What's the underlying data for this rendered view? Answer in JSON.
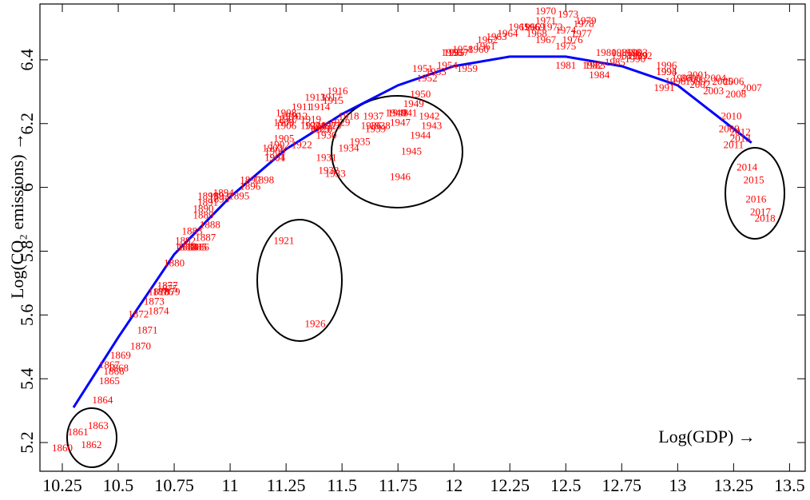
{
  "chart_data": {
    "type": "scatter",
    "xlabel": "Log(GDP) →",
    "ylabel": "Log(CO₂ emissions) →",
    "xlim": [
      10.15,
      13.57
    ],
    "ylim": [
      5.11,
      6.575
    ],
    "xticks": [
      10.25,
      10.5,
      10.75,
      11,
      11.25,
      11.5,
      11.75,
      12,
      12.25,
      12.5,
      12.75,
      13,
      13.25,
      13.5
    ],
    "yticks": [
      5.2,
      5.4,
      5.6,
      5.8,
      6,
      6.2,
      6.4
    ],
    "color": "#ff0000",
    "point_labels": [
      "1860",
      "1861",
      "1862",
      "1863",
      "1864",
      "1865",
      "1866",
      "1867",
      "1868",
      "1869",
      "1870",
      "1871",
      "1872",
      "1873",
      "1874",
      "1875",
      "1876",
      "1877",
      "1878",
      "1879",
      "1880",
      "1881",
      "1882",
      "1883",
      "1884",
      "1885",
      "1886",
      "1887",
      "1888",
      "1889",
      "1890",
      "1891",
      "1892",
      "1893",
      "1894",
      "1895",
      "1896",
      "1897",
      "1898",
      "1899",
      "1900",
      "1901",
      "1902",
      "1903",
      "1904",
      "1905",
      "1906",
      "1907",
      "1908",
      "1909",
      "1910",
      "1911",
      "1912",
      "1913",
      "1914",
      "1915",
      "1916",
      "1917",
      "1918",
      "1919",
      "1920",
      "1921",
      "1922",
      "1923",
      "1924",
      "1925",
      "1926",
      "1927",
      "1928",
      "1929",
      "1930",
      "1931",
      "1932",
      "1933",
      "1934",
      "1935",
      "1936",
      "1937",
      "1938",
      "1939",
      "1940",
      "1941",
      "1942",
      "1943",
      "1944",
      "1945",
      "1946",
      "1947",
      "1948",
      "1949",
      "1950",
      "1951",
      "1952",
      "1953",
      "1954",
      "1955",
      "1956",
      "1957",
      "1958",
      "1959",
      "1960",
      "1961",
      "1962",
      "1963",
      "1964",
      "1965",
      "1966",
      "1967",
      "1968",
      "1969",
      "1970",
      "1971",
      "1972",
      "1973",
      "1974",
      "1975",
      "1976",
      "1977",
      "1978",
      "1979",
      "1980",
      "1981",
      "1982",
      "1983",
      "1984",
      "1985",
      "1986",
      "1987",
      "1988",
      "1989",
      "1990",
      "1991",
      "1992",
      "1993",
      "1994",
      "1995",
      "1996",
      "1997",
      "1998",
      "1999",
      "2000",
      "2001",
      "2002",
      "2003",
      "2004",
      "2005",
      "2006",
      "2007",
      "2008",
      "2009",
      "2010",
      "2011",
      "2012",
      "2013",
      "2014",
      "2015",
      "2016",
      "2017",
      "2018"
    ],
    "x": [
      10.25,
      10.32,
      10.38,
      10.41,
      10.43,
      10.46,
      10.48,
      10.46,
      10.5,
      10.51,
      10.6,
      10.63,
      10.59,
      10.66,
      10.68,
      10.72,
      10.7,
      10.72,
      10.68,
      10.73,
      10.75,
      10.8,
      10.8,
      10.83,
      10.81,
      10.85,
      10.86,
      10.89,
      10.91,
      10.88,
      10.88,
      10.9,
      10.95,
      10.95,
      10.97,
      11.04,
      11.09,
      11.09,
      11.15,
      10.9,
      11.2,
      11.2,
      11.22,
      11.19,
      11.2,
      11.24,
      11.25,
      11.26,
      11.25,
      11.24,
      11.27,
      11.32,
      11.3,
      11.38,
      11.4,
      11.46,
      11.48,
      11.45,
      11.53,
      11.36,
      11.36,
      11.24,
      11.32,
      11.45,
      11.38,
      11.4,
      11.38,
      11.43,
      11.41,
      11.49,
      11.43,
      11.43,
      11.44,
      11.47,
      11.53,
      11.58,
      11.63,
      11.64,
      11.67,
      11.65,
      11.74,
      11.79,
      11.89,
      11.9,
      11.85,
      11.81,
      11.76,
      11.76,
      11.75,
      11.82,
      11.85,
      11.86,
      11.88,
      11.92,
      11.97,
      12.0,
      11.99,
      12.02,
      12.04,
      12.06,
      12.11,
      12.14,
      12.15,
      12.19,
      12.24,
      12.29,
      12.34,
      12.41,
      12.37,
      12.36,
      12.41,
      12.41,
      12.44,
      12.51,
      12.5,
      12.5,
      12.53,
      12.57,
      12.58,
      12.59,
      12.68,
      12.5,
      12.62,
      12.63,
      12.65,
      12.72,
      12.75,
      12.75,
      12.79,
      12.82,
      12.81,
      12.94,
      12.84,
      12.82,
      12.95,
      12.95,
      12.95,
      13.02,
      12.99,
      13.08,
      13.06,
      13.09,
      13.1,
      13.16,
      13.17,
      13.2,
      13.25,
      13.33,
      13.26,
      13.23,
      13.24,
      13.25,
      13.28,
      13.28,
      13.31,
      13.34,
      13.35,
      13.37,
      13.39
    ],
    "values": [
      5.18,
      5.23,
      5.19,
      5.25,
      5.33,
      5.39,
      5.42,
      5.44,
      5.43,
      5.47,
      5.5,
      5.55,
      5.6,
      5.64,
      5.61,
      5.68,
      5.67,
      5.69,
      5.67,
      5.67,
      5.76,
      5.81,
      5.83,
      5.86,
      5.81,
      5.81,
      5.81,
      5.84,
      5.88,
      5.91,
      5.93,
      5.95,
      5.97,
      5.96,
      5.98,
      5.97,
      6.0,
      6.02,
      6.02,
      5.97,
      6.11,
      6.09,
      6.13,
      6.12,
      6.09,
      6.15,
      6.19,
      6.21,
      6.23,
      6.2,
      6.22,
      6.25,
      6.22,
      6.28,
      6.25,
      6.27,
      6.3,
      6.28,
      6.22,
      6.21,
      6.19,
      5.83,
      6.13,
      6.19,
      6.19,
      6.18,
      5.57,
      6.19,
      6.18,
      6.2,
      6.16,
      6.09,
      6.05,
      6.04,
      6.12,
      6.14,
      6.19,
      6.22,
      6.19,
      6.18,
      6.23,
      6.23,
      6.22,
      6.19,
      6.16,
      6.11,
      6.03,
      6.2,
      6.23,
      6.26,
      6.29,
      6.37,
      6.34,
      6.36,
      6.38,
      6.42,
      6.42,
      6.42,
      6.43,
      6.37,
      6.43,
      6.44,
      6.46,
      6.47,
      6.48,
      6.5,
      6.5,
      6.46,
      6.48,
      6.5,
      6.55,
      6.52,
      6.5,
      6.54,
      6.49,
      6.44,
      6.46,
      6.48,
      6.51,
      6.52,
      6.42,
      6.38,
      6.38,
      6.38,
      6.35,
      6.39,
      6.42,
      6.41,
      6.42,
      6.41,
      6.4,
      6.31,
      6.41,
      6.42,
      6.36,
      6.36,
      6.38,
      6.34,
      6.33,
      6.33,
      6.34,
      6.35,
      6.32,
      6.3,
      6.34,
      6.33,
      6.33,
      6.31,
      6.29,
      6.18,
      6.22,
      6.13,
      6.17,
      6.15,
      6.06,
      6.02,
      5.96,
      5.92,
      5.9
    ],
    "fit": {
      "color": "#0000ff",
      "x": [
        10.3,
        10.5,
        10.75,
        11,
        11.25,
        11.5,
        11.75,
        12,
        12.25,
        12.5,
        12.75,
        13,
        13.33
      ],
      "values": [
        5.31,
        5.53,
        5.79,
        5.97,
        6.12,
        6.23,
        6.32,
        6.38,
        6.41,
        6.41,
        6.38,
        6.32,
        6.14
      ]
    }
  }
}
